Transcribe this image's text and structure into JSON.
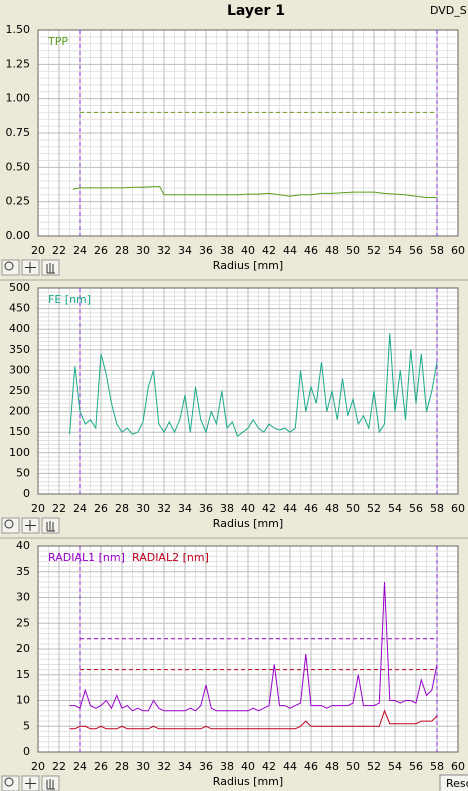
{
  "window": {
    "title": "Layer 1",
    "tab": "DVD_S",
    "button": "Resc"
  },
  "chart_data": [
    {
      "type": "line",
      "x_label": "Radius [mm]",
      "xlim": [
        20,
        60
      ],
      "xticks": [
        20,
        22,
        24,
        26,
        28,
        30,
        32,
        34,
        36,
        38,
        40,
        42,
        44,
        46,
        48,
        50,
        52,
        54,
        56,
        58,
        60
      ],
      "ylim": [
        0,
        1.5
      ],
      "yticks": [
        {
          "value": 0,
          "label": "0.00"
        },
        {
          "value": 0.25,
          "label": "0.25"
        },
        {
          "value": 0.5,
          "label": "0.50"
        },
        {
          "value": 0.75,
          "label": "0.75"
        },
        {
          "value": 1,
          "label": "1.00"
        },
        {
          "value": 1.25,
          "label": "1.25"
        },
        {
          "value": 1.5,
          "label": "1.50"
        }
      ],
      "grid": true,
      "x_markers": [
        24,
        58
      ],
      "marker_color": "#8a2be2",
      "limits": [
        {
          "value": 0.9,
          "color": "#6a9a20"
        }
      ],
      "x": [
        23.3,
        24,
        25,
        26,
        27,
        28,
        29,
        30,
        31,
        31.6,
        32,
        33,
        34,
        35,
        36,
        37,
        38,
        39,
        40,
        41,
        42,
        43,
        44,
        45,
        46,
        47,
        48,
        49,
        50,
        51,
        52,
        53,
        54,
        55,
        56,
        57,
        58
      ],
      "series": [
        {
          "name": "TPP",
          "color": "#5a9e1a",
          "values": [
            0.34,
            0.35,
            0.35,
            0.35,
            0.35,
            0.35,
            0.355,
            0.355,
            0.36,
            0.36,
            0.3,
            0.3,
            0.3,
            0.3,
            0.3,
            0.3,
            0.3,
            0.3,
            0.305,
            0.305,
            0.31,
            0.3,
            0.29,
            0.3,
            0.3,
            0.31,
            0.31,
            0.315,
            0.32,
            0.32,
            0.32,
            0.31,
            0.305,
            0.3,
            0.29,
            0.28,
            0.28
          ]
        }
      ]
    },
    {
      "type": "line",
      "x_label": "Radius [mm]",
      "xlim": [
        20,
        60
      ],
      "xticks": [
        20,
        22,
        24,
        26,
        28,
        30,
        32,
        34,
        36,
        38,
        40,
        42,
        44,
        46,
        48,
        50,
        52,
        54,
        56,
        58,
        60
      ],
      "ylim": [
        0,
        500
      ],
      "yticks": [
        0,
        50,
        100,
        150,
        200,
        250,
        300,
        350,
        400,
        450,
        500
      ],
      "grid": true,
      "x_markers": [
        24,
        58
      ],
      "marker_color": "#8a2be2",
      "limits": [],
      "x": [
        23,
        23.5,
        24,
        24.5,
        25,
        25.5,
        26,
        26.5,
        27,
        27.5,
        28,
        28.5,
        29,
        29.5,
        30,
        30.5,
        31,
        31.5,
        32,
        32.5,
        33,
        33.5,
        34,
        34.5,
        35,
        35.5,
        36,
        36.5,
        37,
        37.5,
        38,
        38.5,
        39,
        39.5,
        40,
        40.5,
        41,
        41.5,
        42,
        42.5,
        43,
        43.5,
        44,
        44.5,
        45,
        45.5,
        46,
        46.5,
        47,
        47.5,
        48,
        48.5,
        49,
        49.5,
        50,
        50.5,
        51,
        51.5,
        52,
        52.5,
        53,
        53.5,
        54,
        54.5,
        55,
        55.5,
        56,
        56.5,
        57,
        57.5,
        58
      ],
      "series": [
        {
          "name": "FE [nm]",
          "color": "#1aaa8a",
          "values": [
            145,
            310,
            200,
            170,
            180,
            160,
            340,
            290,
            220,
            170,
            150,
            160,
            145,
            150,
            175,
            260,
            300,
            170,
            150,
            175,
            150,
            180,
            240,
            150,
            260,
            180,
            150,
            200,
            170,
            250,
            160,
            175,
            140,
            150,
            160,
            180,
            160,
            150,
            170,
            160,
            155,
            160,
            150,
            160,
            300,
            200,
            260,
            220,
            320,
            200,
            250,
            180,
            280,
            190,
            230,
            170,
            190,
            160,
            250,
            150,
            170,
            390,
            200,
            300,
            180,
            350,
            220,
            340,
            200,
            250,
            320
          ]
        }
      ]
    },
    {
      "type": "line",
      "x_label": "Radius [mm]",
      "xlim": [
        20,
        60
      ],
      "xticks": [
        20,
        22,
        24,
        26,
        28,
        30,
        32,
        34,
        36,
        38,
        40,
        42,
        44,
        46,
        48,
        50,
        52,
        54,
        56,
        58,
        60
      ],
      "ylim": [
        0,
        40
      ],
      "yticks": [
        0,
        5,
        10,
        15,
        20,
        25,
        30,
        35,
        40
      ],
      "grid": true,
      "x_markers": [
        24,
        58
      ],
      "marker_color": "#8a2be2",
      "limits": [
        {
          "value": 22,
          "color": "#9a00cc"
        },
        {
          "value": 16,
          "color": "#c0001a"
        }
      ],
      "x": [
        23,
        23.5,
        24,
        24.5,
        25,
        25.5,
        26,
        26.5,
        27,
        27.5,
        28,
        28.5,
        29,
        29.5,
        30,
        30.5,
        31,
        31.5,
        32,
        32.5,
        33,
        33.5,
        34,
        34.5,
        35,
        35.5,
        36,
        36.5,
        37,
        37.5,
        38,
        38.5,
        39,
        39.5,
        40,
        40.5,
        41,
        41.5,
        42,
        42.5,
        43,
        43.5,
        44,
        44.5,
        45,
        45.5,
        46,
        46.5,
        47,
        47.5,
        48,
        48.5,
        49,
        49.5,
        50,
        50.5,
        51,
        51.5,
        52,
        52.5,
        53,
        53.5,
        54,
        54.5,
        55,
        55.5,
        56,
        56.5,
        57,
        57.5,
        58
      ],
      "series": [
        {
          "name": "RADIAL1 [nm]",
          "color": "#9a00cc",
          "values": [
            9,
            9,
            8.5,
            12,
            9,
            8.5,
            9,
            10,
            8.5,
            11,
            8.5,
            9,
            8,
            8.5,
            8,
            8,
            10,
            8.5,
            8,
            8,
            8,
            8,
            8,
            8.5,
            8,
            9,
            13,
            8.5,
            8,
            8,
            8,
            8,
            8,
            8,
            8,
            8.5,
            8,
            8.5,
            9,
            17,
            9,
            9,
            8.5,
            9,
            9.5,
            19,
            9,
            9,
            9,
            8.5,
            9,
            9,
            9,
            9,
            9.5,
            15,
            9,
            9,
            9,
            9.5,
            33,
            10,
            10,
            9.5,
            10,
            10,
            9.5,
            14,
            11,
            12,
            17
          ]
        },
        {
          "name": "RADIAL2 [nm]",
          "color": "#c0001a",
          "values": [
            4.5,
            4.5,
            5,
            5,
            4.5,
            4.5,
            5,
            4.5,
            4.5,
            4.5,
            5,
            4.5,
            4.5,
            4.5,
            4.5,
            4.5,
            5,
            4.5,
            4.5,
            4.5,
            4.5,
            4.5,
            4.5,
            4.5,
            4.5,
            4.5,
            5,
            4.5,
            4.5,
            4.5,
            4.5,
            4.5,
            4.5,
            4.5,
            4.5,
            4.5,
            4.5,
            4.5,
            4.5,
            4.5,
            4.5,
            4.5,
            4.5,
            4.5,
            5,
            6,
            5,
            5,
            5,
            5,
            5,
            5,
            5,
            5,
            5,
            5,
            5,
            5,
            5,
            5,
            8,
            5.5,
            5.5,
            5.5,
            5.5,
            5.5,
            5.5,
            6,
            6,
            6,
            7
          ]
        }
      ]
    }
  ]
}
